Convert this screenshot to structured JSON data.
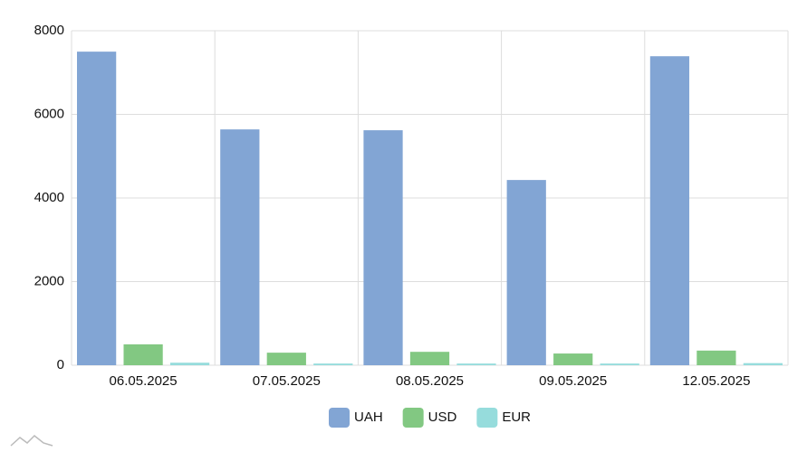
{
  "chart_data": {
    "type": "bar",
    "categories": [
      "06.05.2025",
      "07.05.2025",
      "08.05.2025",
      "09.05.2025",
      "12.05.2025"
    ],
    "series": [
      {
        "name": "UAH",
        "color": "#82a5d4",
        "values": [
          7500,
          5640,
          5620,
          4430,
          7390
        ]
      },
      {
        "name": "USD",
        "color": "#82c882",
        "values": [
          500,
          300,
          320,
          280,
          350
        ]
      },
      {
        "name": "EUR",
        "color": "#96dcdc",
        "values": [
          60,
          40,
          40,
          40,
          50
        ]
      }
    ],
    "ylim": [
      0,
      8000
    ],
    "yticks": [
      0,
      2000,
      4000,
      6000,
      8000
    ],
    "grid": true,
    "legend": "bottom"
  }
}
